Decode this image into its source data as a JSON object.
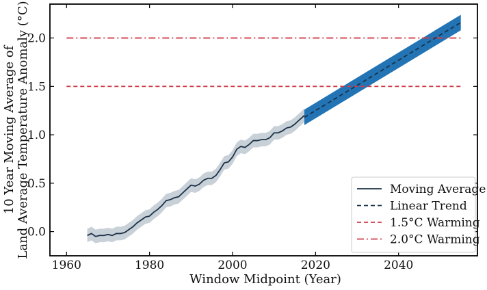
{
  "chart_data": {
    "type": "line",
    "title": "",
    "xlabel": "Window Midpoint (Year)",
    "ylabel_line1": "10 Year Moving Average of",
    "ylabel_line2": "Land Average Temperature Anomaly (°C)",
    "xlim": [
      1956,
      2059
    ],
    "ylim": [
      -0.25,
      2.35
    ],
    "xticks": [
      1960,
      1980,
      2000,
      2020,
      2040
    ],
    "yticks": [
      0.0,
      0.5,
      1.0,
      1.5,
      2.0
    ],
    "ytick_labels": [
      "0.0",
      "0.5",
      "1.0",
      "1.5",
      "2.0"
    ],
    "grid": false,
    "legend_position": "bottom-right",
    "colors": {
      "moving_average": "#1b3147",
      "uncertainty_band": "#9aa9b8",
      "trend_band": "#2274b5",
      "linear_trend": "#1b3147",
      "warming_15": "#cf3c48",
      "warming_20": "#cf3c48"
    },
    "series": [
      {
        "name": "Moving Average",
        "style": "solid",
        "uncertainty": 0.07,
        "x": [
          1965,
          1966,
          1967,
          1968,
          1969,
          1970,
          1971,
          1972,
          1973,
          1974,
          1975,
          1976,
          1977,
          1978,
          1979,
          1980,
          1981,
          1982,
          1983,
          1984,
          1985,
          1986,
          1987,
          1988,
          1989,
          1990,
          1991,
          1992,
          1993,
          1994,
          1995,
          1996,
          1997,
          1998,
          1999,
          2000,
          2001,
          2002,
          2003,
          2004,
          2005,
          2006,
          2007,
          2008,
          2009,
          2010,
          2011,
          2012,
          2013,
          2014,
          2015,
          2016,
          2017.3
        ],
        "y": [
          -0.04,
          -0.02,
          -0.05,
          -0.04,
          -0.04,
          -0.03,
          -0.04,
          -0.02,
          -0.02,
          -0.01,
          0.02,
          0.05,
          0.09,
          0.12,
          0.15,
          0.16,
          0.2,
          0.23,
          0.27,
          0.32,
          0.33,
          0.35,
          0.36,
          0.4,
          0.44,
          0.48,
          0.47,
          0.49,
          0.53,
          0.55,
          0.55,
          0.58,
          0.64,
          0.71,
          0.72,
          0.77,
          0.85,
          0.88,
          0.87,
          0.9,
          0.94,
          0.94,
          0.95,
          0.95,
          0.97,
          1.02,
          1.02,
          1.04,
          1.07,
          1.08,
          1.11,
          1.15,
          1.2
        ]
      },
      {
        "name": "Linear Trend",
        "style": "dashed",
        "band_halfwidth": 0.08,
        "x": [
          2017.3,
          2055
        ],
        "y": [
          1.18,
          2.16
        ]
      },
      {
        "name": "1.5°C Warming",
        "style": "dashed",
        "x": [
          1960,
          2055
        ],
        "y": [
          1.5,
          1.5
        ]
      },
      {
        "name": "2.0°C Warming",
        "style": "dashdot",
        "x": [
          1960,
          2055
        ],
        "y": [
          2.0,
          2.0
        ]
      }
    ]
  }
}
